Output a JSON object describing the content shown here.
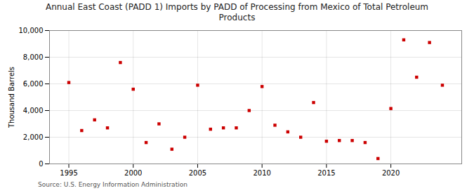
{
  "chart_data": {
    "type": "scatter",
    "title": "Annual East Coast (PADD 1) Imports by PADD of Processing from Mexico of Total Petroleum\nProducts",
    "ylabel": "Thousand Barrels",
    "source": "Source: U.S. Energy Information Administration",
    "x": [
      1995,
      1996,
      1997,
      1998,
      1999,
      2000,
      2001,
      2002,
      2003,
      2004,
      2005,
      2006,
      2007,
      2008,
      2009,
      2010,
      2011,
      2012,
      2013,
      2014,
      2015,
      2016,
      2017,
      2018,
      2019,
      2020,
      2021,
      2022,
      2023,
      2024
    ],
    "values": [
      6100,
      2500,
      3300,
      2700,
      7600,
      5600,
      1600,
      3000,
      1100,
      2000,
      5900,
      2600,
      2700,
      2700,
      4000,
      5800,
      2900,
      2400,
      2000,
      4600,
      1700,
      1750,
      1750,
      1600,
      400,
      4150,
      9300,
      6500,
      9100,
      5900
    ],
    "color": "#cc0000",
    "marker": "square",
    "xlim": [
      1993.5,
      2025.5
    ],
    "xticks": [
      1995,
      2000,
      2005,
      2010,
      2015,
      2020
    ],
    "ylim": [
      0,
      10000
    ],
    "yticks": [
      0,
      {
        "value": 2000,
        "label": "2,000"
      },
      {
        "value": 4000,
        "label": "4,000"
      },
      {
        "value": 6000,
        "label": "6,000"
      },
      {
        "value": 8000,
        "label": "8,000"
      },
      {
        "value": 10000,
        "label": "10,000"
      }
    ],
    "grid": true
  }
}
